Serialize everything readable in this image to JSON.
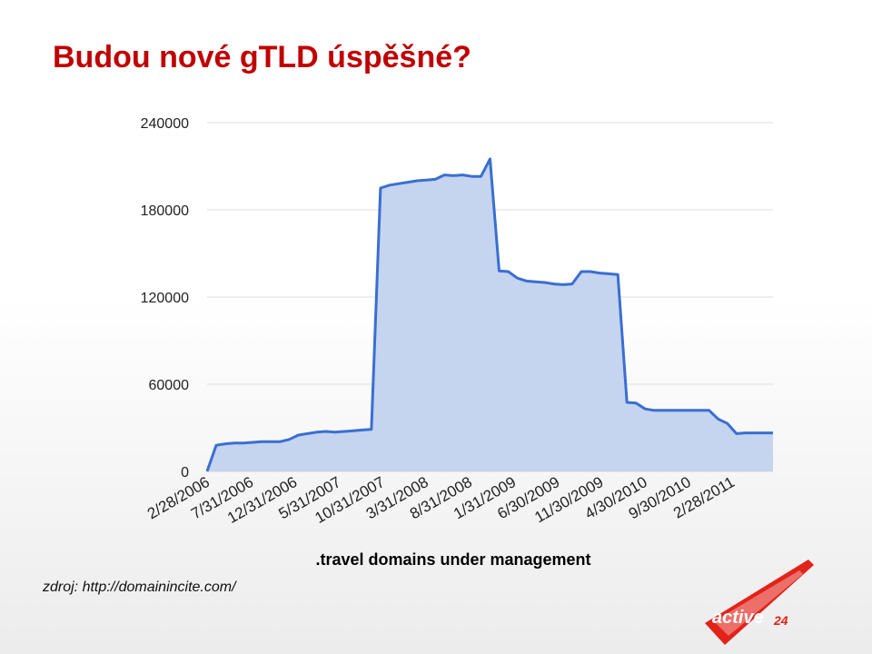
{
  "slide": {
    "title": "Budou nové gTLD úspěšné?",
    "source": "zdroj: http://domainincite.com/",
    "logo_text": "active24"
  },
  "colors": {
    "title": "#c00000",
    "line": "#3a6fd0",
    "area": "#c5d4ef",
    "grid": "#dddddd",
    "logo_red": "#e2231a"
  },
  "chart_data": {
    "type": "area",
    "title": "",
    "xlabel": ".travel domains under management",
    "ylabel": "",
    "ylim": [
      0,
      240000
    ],
    "yticks": [
      0,
      60000,
      120000,
      180000,
      240000
    ],
    "ytick_labels": [
      "0",
      "60000",
      "120000",
      "180000",
      "240000"
    ],
    "xtick_labels": [
      "2/28/2006",
      "7/31/2006",
      "12/31/2006",
      "5/31/2007",
      "10/31/2007",
      "3/31/2008",
      "8/31/2008",
      "1/31/2009",
      "6/30/2009",
      "11/30/2009",
      "4/30/2010",
      "9/30/2010",
      "2/28/2011"
    ],
    "grid": true,
    "legend": "none",
    "series": [
      {
        "values": [
          0,
          18000,
          19000,
          19500,
          19500,
          20000,
          20500,
          20500,
          20500,
          22000,
          25000,
          26000,
          27000,
          27500,
          27000,
          27500,
          28000,
          28500,
          29000,
          195000,
          197000,
          198000,
          199000,
          200000,
          200500,
          201000,
          204000,
          203500,
          204000,
          203000,
          203000,
          215000,
          138000,
          137500,
          133000,
          131000,
          130500,
          130000,
          129000,
          128500,
          129000,
          137500,
          137500,
          136500,
          136000,
          135500,
          47500,
          47000,
          43000,
          42000,
          42000,
          42000,
          42000,
          42000,
          42000,
          42000,
          36000,
          33000,
          26000,
          26500,
          26500,
          26500,
          26500
        ]
      }
    ]
  }
}
